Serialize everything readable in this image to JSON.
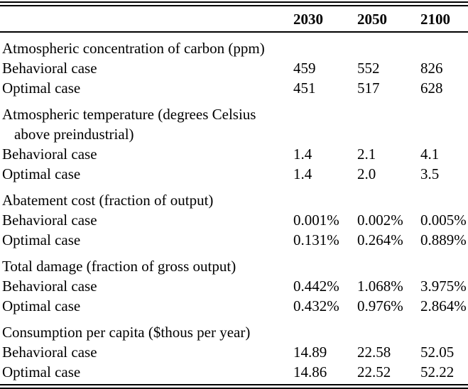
{
  "table": {
    "columns": [
      "2030",
      "2050",
      "2100"
    ],
    "sections": [
      {
        "heading_lines": [
          "Atmospheric concentration of carbon (ppm)"
        ],
        "rows": [
          {
            "label": "Behavioral case",
            "values": [
              "459",
              "552",
              "826"
            ]
          },
          {
            "label": "Optimal case",
            "values": [
              "451",
              "517",
              "628"
            ]
          }
        ]
      },
      {
        "heading_lines": [
          "Atmospheric temperature (degrees Celsius",
          "above preindustrial)"
        ],
        "rows": [
          {
            "label": "Behavioral case",
            "values": [
              "1.4",
              "2.1",
              "4.1"
            ]
          },
          {
            "label": "Optimal case",
            "values": [
              "1.4",
              "2.0",
              "3.5"
            ]
          }
        ]
      },
      {
        "heading_lines": [
          "Abatement cost (fraction of output)"
        ],
        "rows": [
          {
            "label": "Behavioral case",
            "values": [
              "0.001%",
              "0.002%",
              "0.005%"
            ]
          },
          {
            "label": "Optimal case",
            "values": [
              "0.131%",
              "0.264%",
              "0.889%"
            ]
          }
        ]
      },
      {
        "heading_lines": [
          "Total damage (fraction of gross output)"
        ],
        "rows": [
          {
            "label": "Behavioral case",
            "values": [
              "0.442%",
              "1.068%",
              "3.975%"
            ]
          },
          {
            "label": "Optimal case",
            "values": [
              "0.432%",
              "0.976%",
              "2.864%"
            ]
          }
        ]
      },
      {
        "heading_lines": [
          "Consumption per capita ($thous per year)"
        ],
        "rows": [
          {
            "label": "Behavioral case",
            "values": [
              "14.89",
              "22.58",
              "52.05"
            ]
          },
          {
            "label": "Optimal case",
            "values": [
              "14.86",
              "22.52",
              "52.22"
            ]
          }
        ]
      }
    ],
    "colors": {
      "text": "#000000",
      "background": "#ffffff",
      "rule": "#000000"
    }
  }
}
